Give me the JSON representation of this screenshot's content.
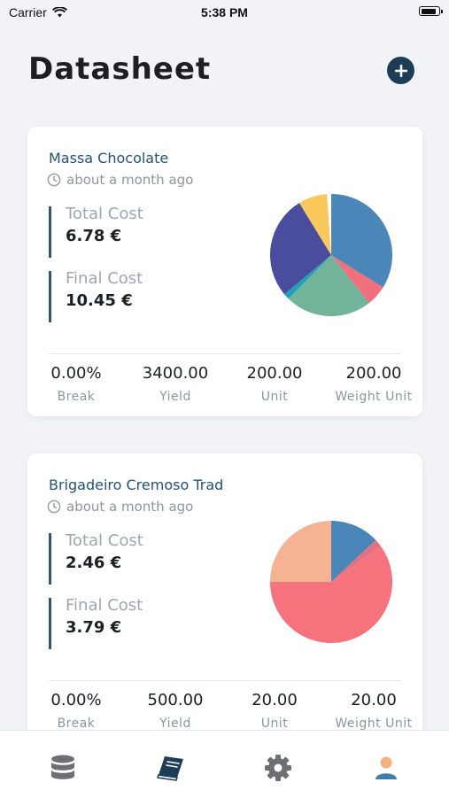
{
  "status_bar": {
    "carrier": "Carrier",
    "time": "5:38 PM",
    "battery_level": 0.9
  },
  "header": {
    "title": "Datasheet"
  },
  "colors": {
    "accent": "#1d3d57",
    "title_text": "#245372",
    "muted": "#8f959c"
  },
  "cards": [
    {
      "title": "Massa Chocolate",
      "time": "about a month ago",
      "total_cost_label": "Total Cost",
      "total_cost": "6.78 €",
      "final_cost_label": "Final Cost",
      "final_cost": "10.45 €",
      "stats": [
        {
          "value": "0.00%",
          "label": "Break"
        },
        {
          "value": "3400.00",
          "label": "Yield"
        },
        {
          "value": "200.00",
          "label": "Unit"
        },
        {
          "value": "200.00",
          "label": "Weight Unit"
        }
      ]
    },
    {
      "title": "Brigadeiro Cremoso Trad",
      "time": "about a month ago",
      "total_cost_label": "Total Cost",
      "total_cost": "2.46 €",
      "final_cost_label": "Final Cost",
      "final_cost": "3.79 €",
      "stats": [
        {
          "value": "0.00%",
          "label": "Break"
        },
        {
          "value": "500.00",
          "label": "Yield"
        },
        {
          "value": "20.00",
          "label": "Unit"
        },
        {
          "value": "20.00",
          "label": "Weight Unit"
        }
      ]
    }
  ],
  "chart_data": [
    {
      "type": "pie",
      "values": [
        31,
        5,
        21,
        1.5,
        25,
        7,
        1
      ],
      "colors": [
        "#4a86b8",
        "#f1707c",
        "#72b49a",
        "#1fa2b8",
        "#4a4c9d",
        "#f9c95c",
        "#ffffff"
      ]
    },
    {
      "type": "pie",
      "values": [
        13,
        2,
        60,
        25
      ],
      "colors": [
        "#4a86b8",
        "#e2707e",
        "#f6727c",
        "#f6b394"
      ]
    }
  ],
  "tab_bar": {
    "tabs": [
      {
        "icon": "database-icon",
        "active": false
      },
      {
        "icon": "book-icon",
        "active": true
      },
      {
        "icon": "gear-icon",
        "active": false
      },
      {
        "icon": "user-icon",
        "active": false
      }
    ]
  }
}
